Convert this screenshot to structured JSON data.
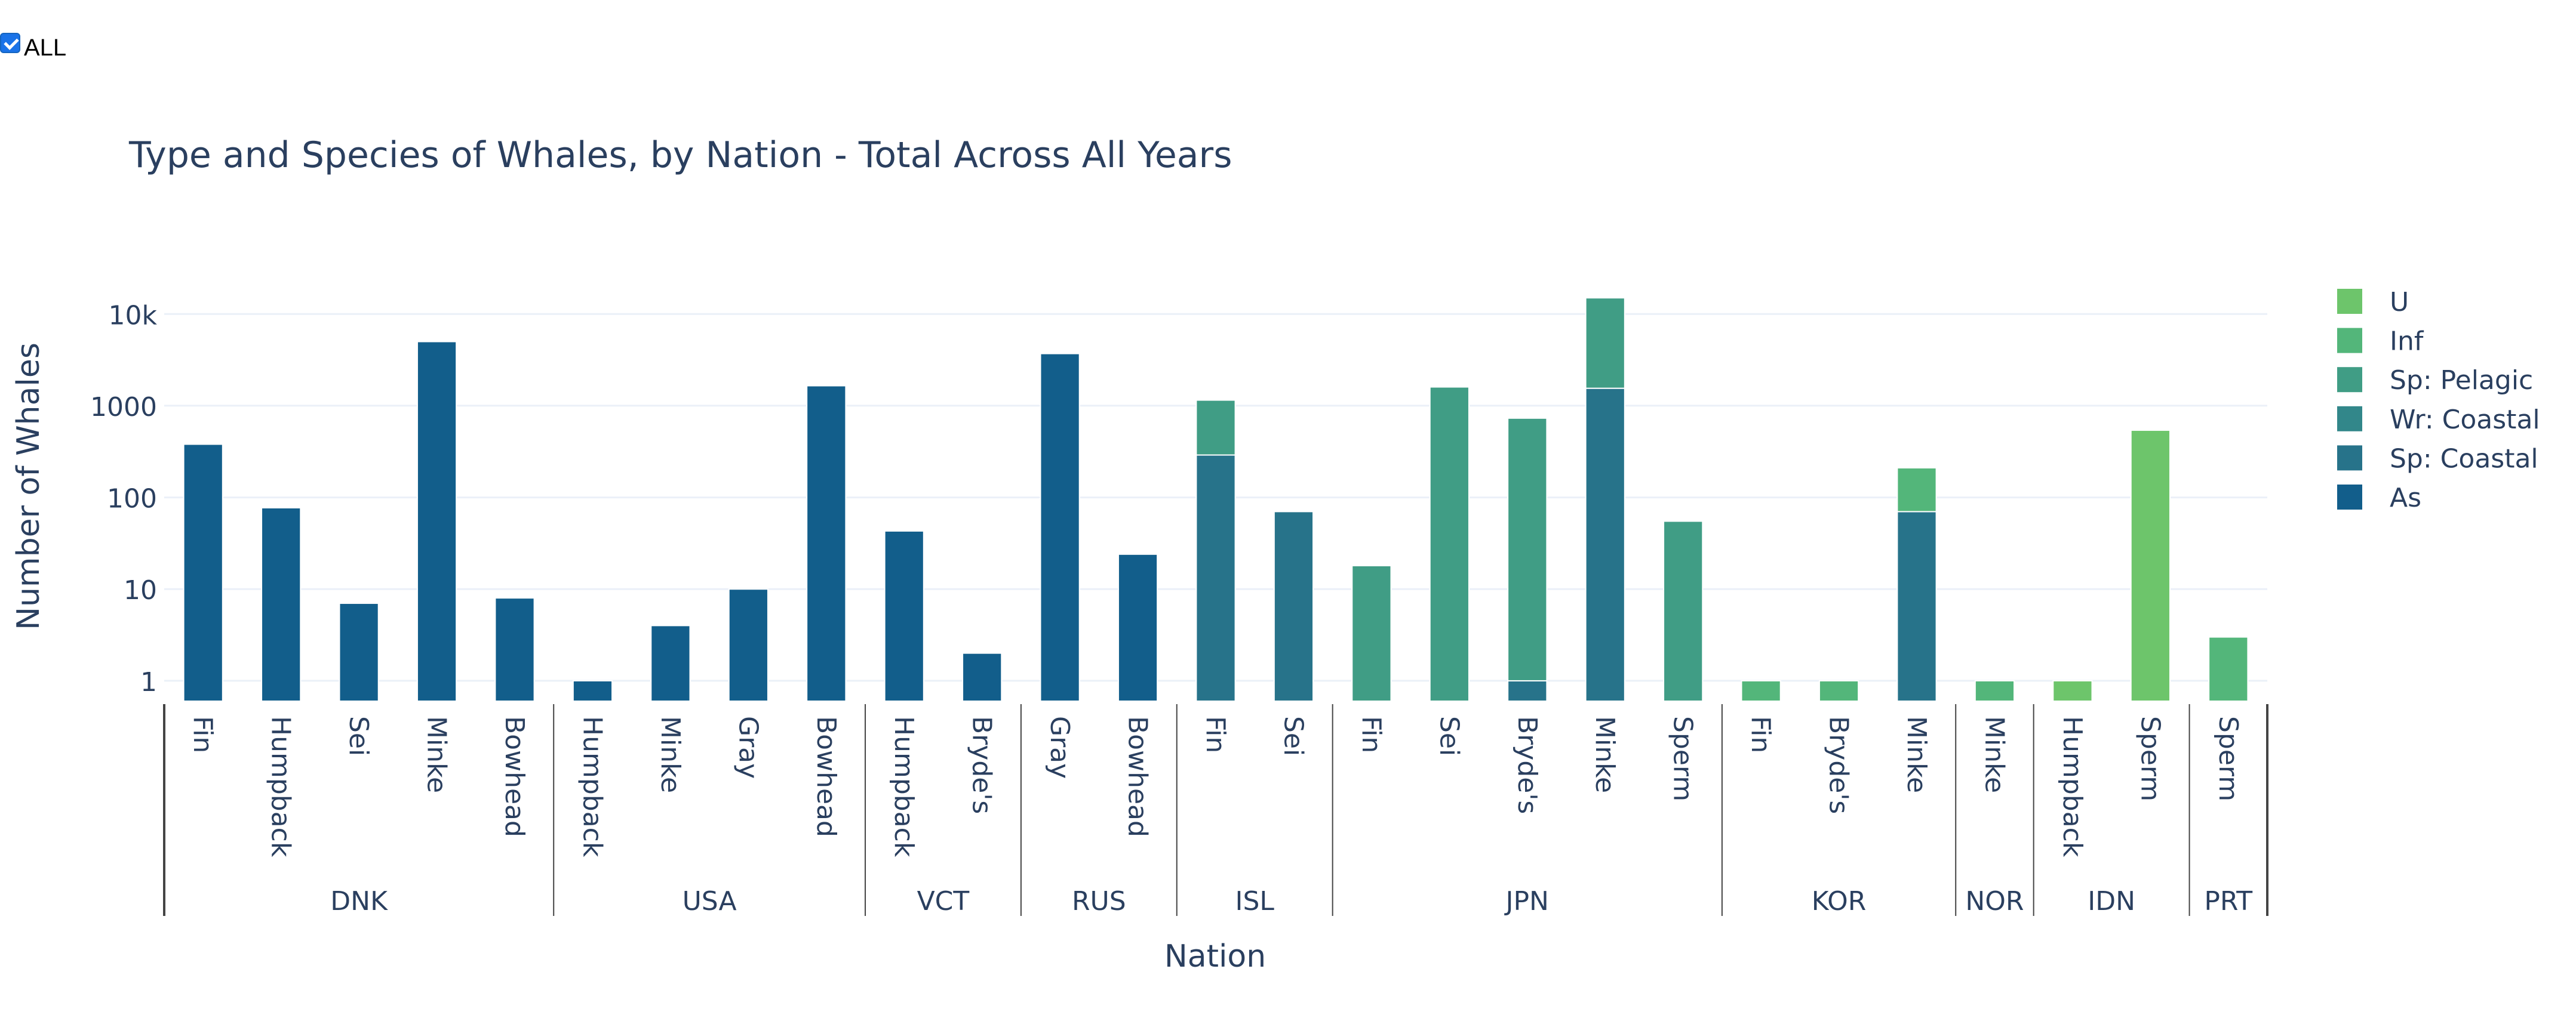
{
  "controls": {
    "all_label": "ALL",
    "all_checked": true
  },
  "chart_data": {
    "type": "bar",
    "barmode": "stack",
    "title": "Type and Species of Whales, by Nation - Total Across All Years",
    "xlabel": "Nation",
    "ylabel": "Number of Whales",
    "yscale": "log",
    "ylim": [
      0.6,
      20000
    ],
    "yticks": [
      1,
      10,
      100,
      1000,
      10000
    ],
    "ytick_labels": [
      "1",
      "10",
      "100",
      "1000",
      "10k"
    ],
    "grid": true,
    "legend_position": "right",
    "categories": [
      {
        "nation": "DNK",
        "species": "Fin"
      },
      {
        "nation": "DNK",
        "species": "Humpback"
      },
      {
        "nation": "DNK",
        "species": "Sei"
      },
      {
        "nation": "DNK",
        "species": "Minke"
      },
      {
        "nation": "DNK",
        "species": "Bowhead"
      },
      {
        "nation": "USA",
        "species": "Humpback"
      },
      {
        "nation": "USA",
        "species": "Minke"
      },
      {
        "nation": "USA",
        "species": "Gray"
      },
      {
        "nation": "USA",
        "species": "Bowhead"
      },
      {
        "nation": "VCT",
        "species": "Humpback"
      },
      {
        "nation": "VCT",
        "species": "Bryde's"
      },
      {
        "nation": "RUS",
        "species": "Gray"
      },
      {
        "nation": "RUS",
        "species": "Bowhead"
      },
      {
        "nation": "ISL",
        "species": "Fin"
      },
      {
        "nation": "ISL",
        "species": "Sei"
      },
      {
        "nation": "JPN",
        "species": "Fin"
      },
      {
        "nation": "JPN",
        "species": "Sei"
      },
      {
        "nation": "JPN",
        "species": "Bryde's"
      },
      {
        "nation": "JPN",
        "species": "Minke"
      },
      {
        "nation": "JPN",
        "species": "Sperm"
      },
      {
        "nation": "KOR",
        "species": "Fin"
      },
      {
        "nation": "KOR",
        "species": "Bryde's"
      },
      {
        "nation": "KOR",
        "species": "Minke"
      },
      {
        "nation": "NOR",
        "species": "Minke"
      },
      {
        "nation": "IDN",
        "species": "Humpback"
      },
      {
        "nation": "IDN",
        "species": "Sperm"
      },
      {
        "nation": "PRT",
        "species": "Sperm"
      }
    ],
    "series": [
      {
        "name": "As",
        "color": "#125e8b",
        "values": [
          380,
          77,
          7,
          5000,
          8,
          1,
          4,
          10,
          1650,
          43,
          2,
          3700,
          24,
          0,
          0,
          0,
          0,
          0,
          0,
          0,
          0,
          0,
          0,
          0,
          0,
          0,
          0
        ]
      },
      {
        "name": "Sp: Coastal",
        "color": "#27738a",
        "values": [
          0,
          0,
          0,
          0,
          0,
          0,
          0,
          0,
          0,
          0,
          0,
          0,
          0,
          290,
          70,
          0,
          0,
          1,
          1550,
          0,
          0,
          0,
          70,
          0,
          0,
          0,
          0
        ]
      },
      {
        "name": "Wr: Coastal",
        "color": "#32878a",
        "values": [
          0,
          0,
          0,
          0,
          0,
          0,
          0,
          0,
          0,
          0,
          0,
          0,
          0,
          0,
          0,
          0,
          0,
          0,
          0,
          0,
          0,
          0,
          0,
          0,
          0,
          0,
          0
        ]
      },
      {
        "name": "Sp: Pelagic",
        "color": "#409d85",
        "values": [
          0,
          0,
          0,
          0,
          0,
          0,
          0,
          0,
          0,
          0,
          0,
          0,
          0,
          860,
          0,
          18,
          1600,
          730,
          13450,
          55,
          0,
          0,
          0,
          0,
          0,
          0,
          0
        ]
      },
      {
        "name": "Inf",
        "color": "#53b67a",
        "values": [
          0,
          0,
          0,
          0,
          0,
          0,
          0,
          0,
          0,
          0,
          0,
          0,
          0,
          0,
          0,
          0,
          0,
          0,
          0,
          0,
          1,
          1,
          140,
          1,
          0,
          0,
          3
        ]
      },
      {
        "name": "U",
        "color": "#6dc56b",
        "values": [
          0,
          0,
          0,
          0,
          0,
          0,
          0,
          0,
          0,
          0,
          0,
          0,
          0,
          0,
          0,
          0,
          0,
          0,
          0,
          0,
          0,
          0,
          0,
          0,
          1,
          540,
          0
        ]
      }
    ],
    "legend_order": [
      "U",
      "Inf",
      "Sp: Pelagic",
      "Wr: Coastal",
      "Sp: Coastal",
      "As"
    ]
  }
}
